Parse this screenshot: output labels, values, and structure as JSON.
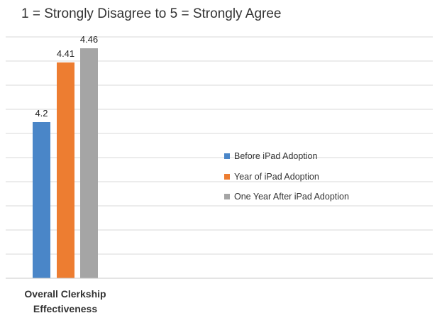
{
  "chart_data": {
    "type": "bar",
    "title": "1 = Strongly Disagree to 5 = Strongly Agree",
    "categories": [
      "Overall Clerkship Effectiveness"
    ],
    "series": [
      {
        "name": "Before iPad Adoption",
        "values": [
          4.2
        ],
        "color": "#4a86c8",
        "data_label": "4.2"
      },
      {
        "name": "Year of iPad Adoption",
        "values": [
          4.41
        ],
        "color": "#ed7d31",
        "data_label": "4.41"
      },
      {
        "name": "One Year After iPad Adoption",
        "values": [
          4.46
        ],
        "color": "#a5a5a5",
        "data_label": "4.46"
      }
    ],
    "ylim": [
      3.65,
      4.5
    ],
    "grid": true,
    "legend_position": "right",
    "category_label_lines": [
      "Overall Clerkship",
      "Effectiveness"
    ]
  }
}
